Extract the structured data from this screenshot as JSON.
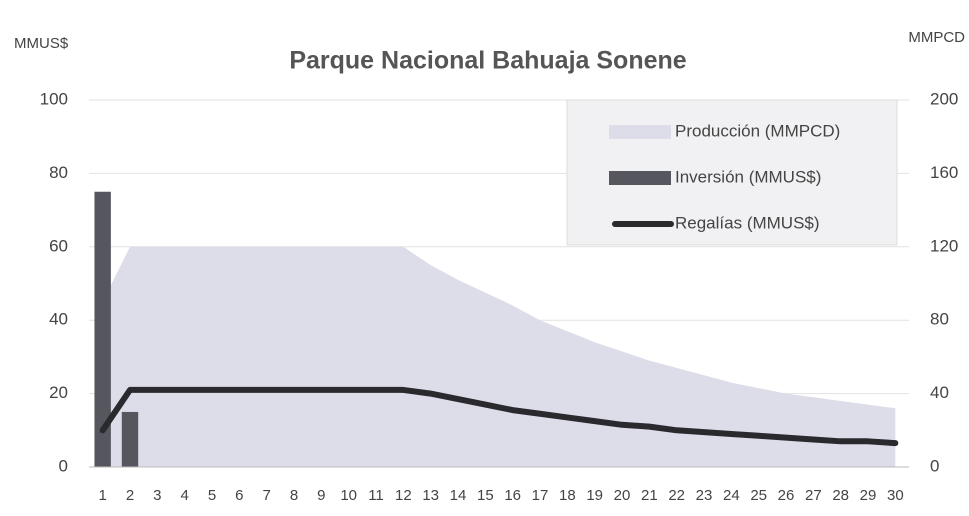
{
  "chart_data": {
    "type": "combo",
    "title": "Parque Nacional Bahuaja Sonene",
    "ylabel": "MMUS$",
    "y2label": "MMPCD",
    "categories": [
      "1",
      "2",
      "3",
      "4",
      "5",
      "6",
      "7",
      "8",
      "9",
      "10",
      "11",
      "12",
      "13",
      "14",
      "15",
      "16",
      "17",
      "18",
      "19",
      "20",
      "21",
      "22",
      "23",
      "24",
      "25",
      "26",
      "27",
      "28",
      "29",
      "30"
    ],
    "series": [
      {
        "name": "Producción (MMPCD)",
        "type": "area",
        "axis": "y2",
        "color": "#dcdde8",
        "values": [
          90,
          120,
          120,
          120,
          120,
          120,
          120,
          120,
          120,
          120,
          120,
          120,
          110,
          102,
          95,
          88,
          80,
          74,
          68,
          63,
          58,
          54,
          50,
          46,
          43,
          40,
          38,
          36,
          34,
          32
        ]
      },
      {
        "name": "Inversión (MMUS$)",
        "type": "bar",
        "axis": "y",
        "color": "#55565e",
        "values": [
          75,
          15,
          0,
          0,
          0,
          0,
          0,
          0,
          0,
          0,
          0,
          0,
          0,
          0,
          0,
          0,
          0,
          0,
          0,
          0,
          0,
          0,
          0,
          0,
          0,
          0,
          0,
          0,
          0,
          0
        ]
      },
      {
        "name": "Regalías (MMUS$)",
        "type": "line",
        "axis": "y",
        "color": "#2a2a2e",
        "values": [
          10,
          21,
          21,
          21,
          21,
          21,
          21,
          21,
          21,
          21,
          21,
          21,
          20,
          18.5,
          17,
          15.5,
          14.5,
          13.5,
          12.5,
          11.5,
          11,
          10,
          9.5,
          9,
          8.5,
          8,
          7.5,
          7,
          7,
          6.5
        ]
      }
    ],
    "ylim": [
      0,
      100
    ],
    "yticks": [
      0,
      20,
      40,
      60,
      80,
      100
    ],
    "y2lim": [
      0,
      200
    ],
    "y2ticks": [
      0,
      40,
      80,
      120,
      160,
      200
    ],
    "grid": true,
    "legend": "top-right"
  }
}
